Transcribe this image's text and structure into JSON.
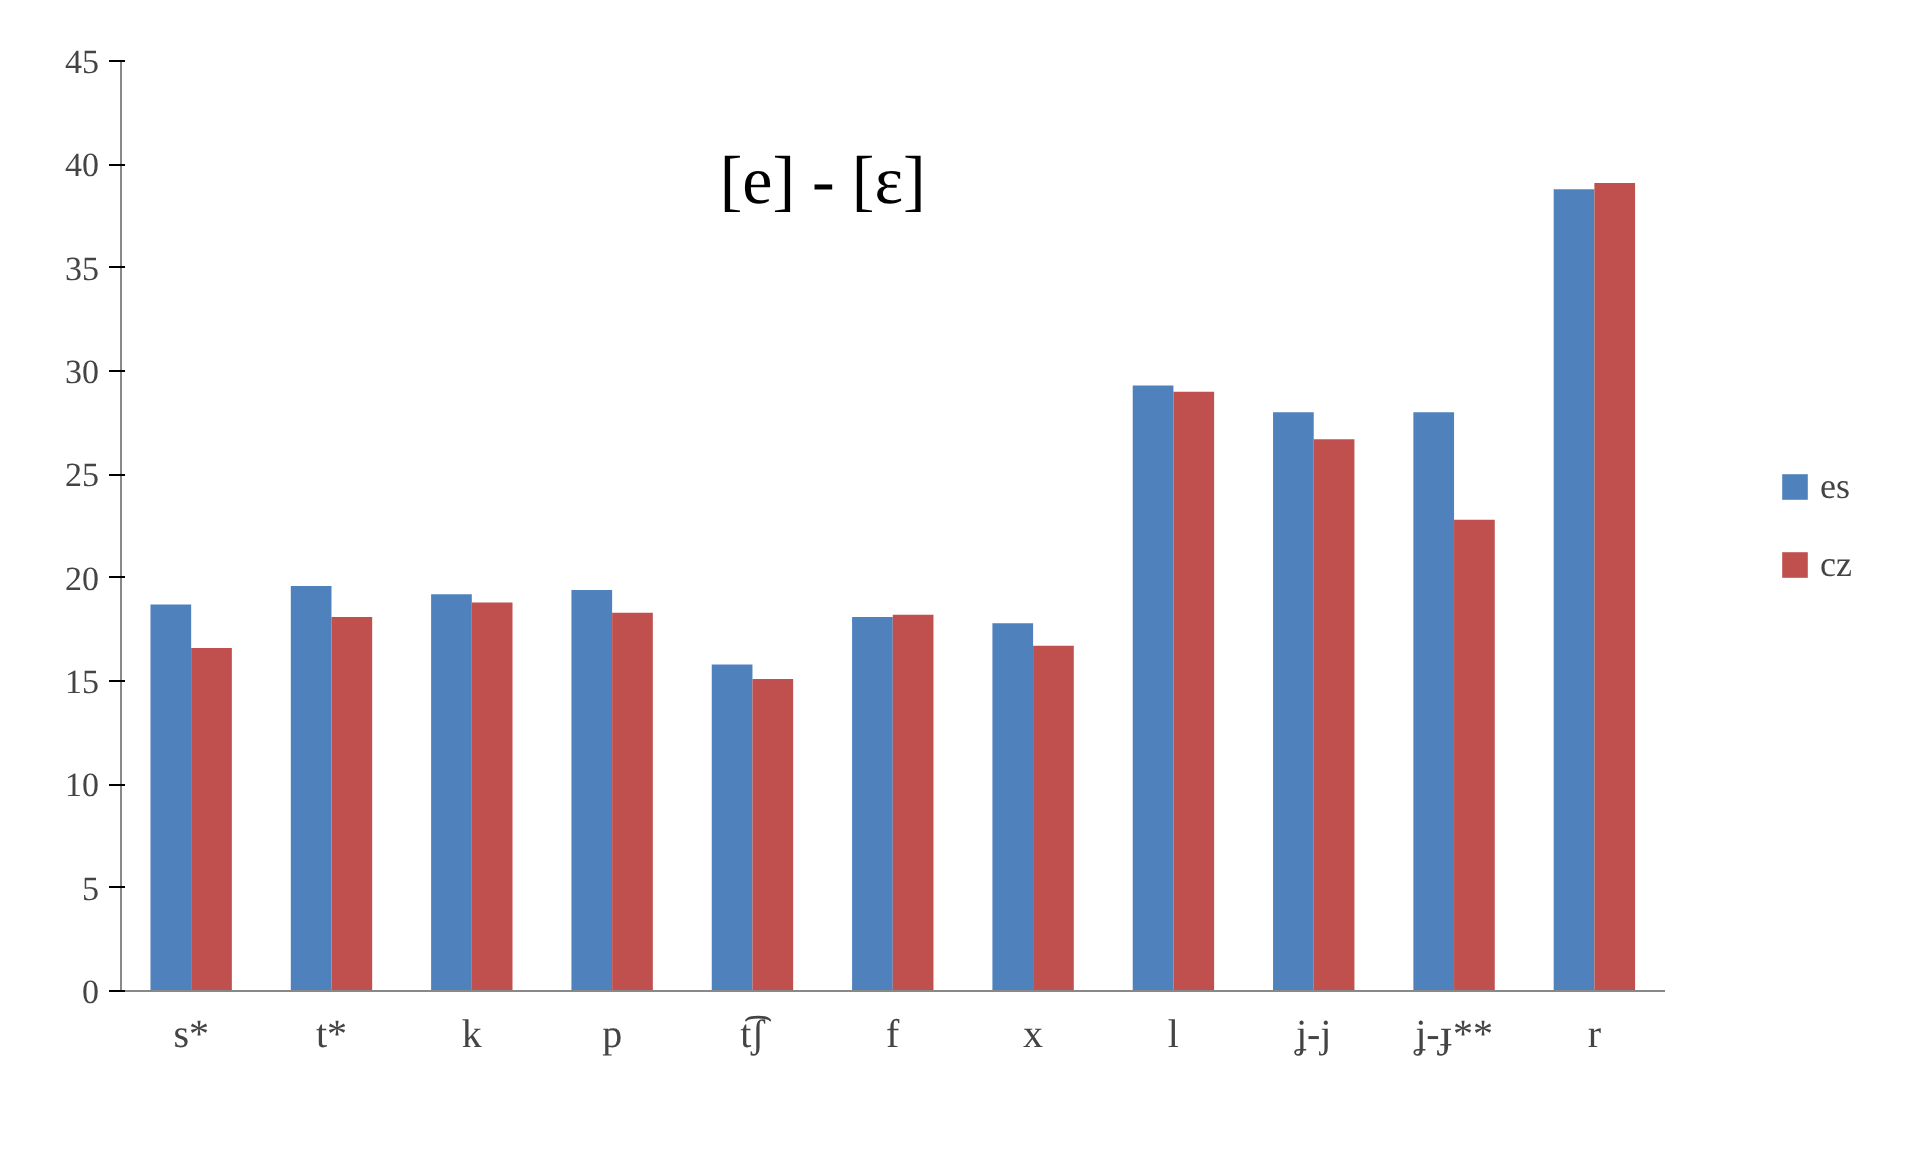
{
  "chart_data": {
    "type": "bar",
    "title": "[e] - [ɛ]",
    "categories": [
      "s*",
      "t*",
      "k",
      "p",
      "t͡ʃ",
      "f",
      "x",
      "l",
      "ʝ-j",
      "ʝ-ɟ**",
      "r"
    ],
    "series": [
      {
        "name": "es",
        "color": "#4f81bd",
        "values": [
          18.7,
          19.6,
          19.2,
          19.4,
          15.8,
          18.1,
          17.8,
          29.3,
          28.0,
          28.0,
          38.8
        ]
      },
      {
        "name": "cz",
        "color": "#c0504d",
        "values": [
          16.6,
          18.1,
          18.8,
          18.3,
          15.1,
          18.2,
          16.7,
          29.0,
          26.7,
          22.8,
          39.1
        ]
      }
    ],
    "ylim": [
      0,
      45
    ],
    "yticks": [
      0,
      5,
      10,
      15,
      20,
      25,
      30,
      35,
      40,
      45
    ],
    "grid": false,
    "legend": "right"
  }
}
